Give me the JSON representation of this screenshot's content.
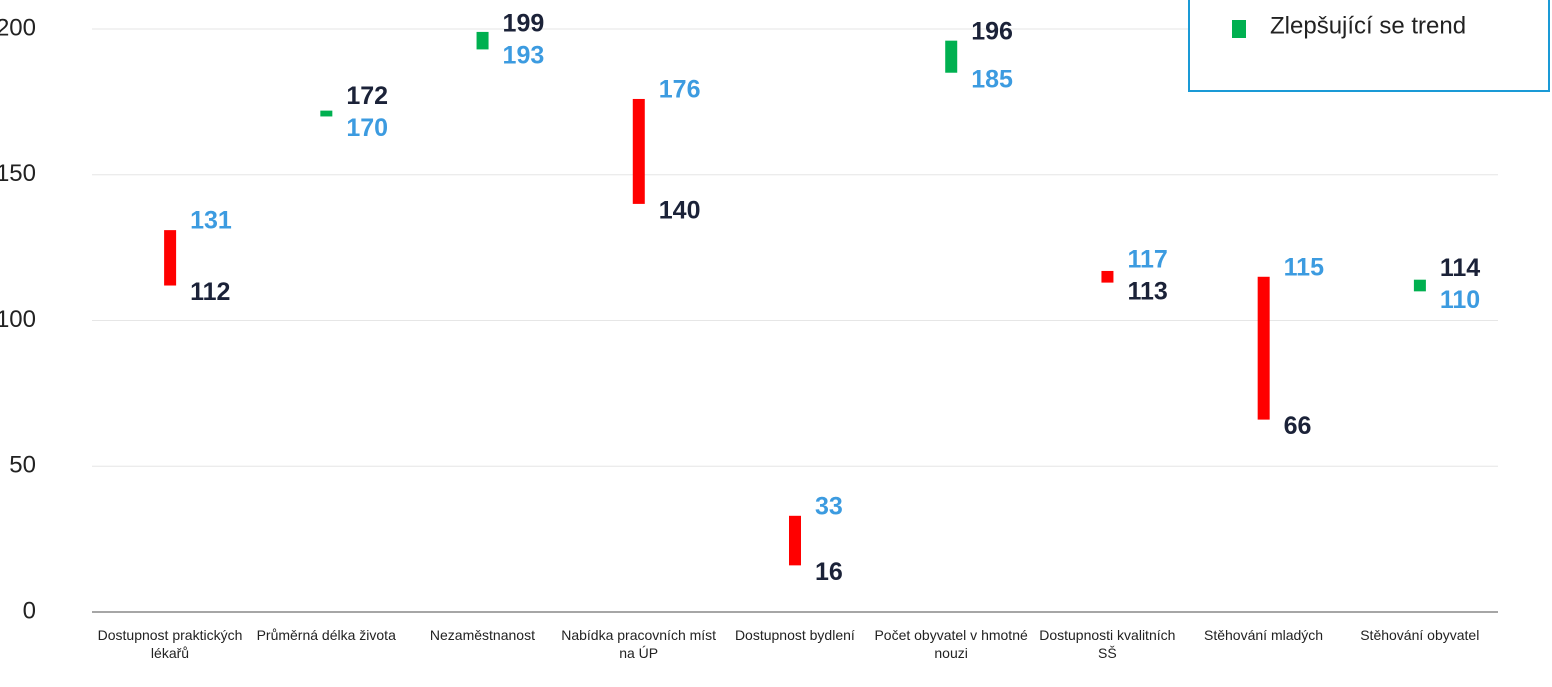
{
  "chart_data": {
    "type": "floating_bar",
    "categories": [
      "Dostupnost praktických lékařů",
      "Průměrná délka života",
      "Nezaměstnanost",
      "Nabídka pracovních míst na ÚP",
      "Dostupnost bydlení",
      "Počet obyvatel v hmotné nouzi",
      "Dostupnosti kvalitních SŠ",
      "Stěhování mladých",
      "Stěhování obyvatel"
    ],
    "series": [
      {
        "color": "#1b2238",
        "values": [
          112,
          172,
          199,
          140,
          16,
          196,
          113,
          66,
          114
        ]
      },
      {
        "color": "#3c9be0",
        "values": [
          131,
          170,
          193,
          176,
          33,
          185,
          117,
          115,
          110
        ]
      }
    ],
    "bar_colors": [
      "#ff0000",
      "#00b050",
      "#00b050",
      "#ff0000",
      "#ff0000",
      "#00b050",
      "#ff0000",
      "#ff0000",
      "#00b050"
    ],
    "legend": {
      "label": "Zlepšující se trend",
      "color": "#00b050",
      "position": "upper right"
    },
    "ylim": [
      0,
      200
    ],
    "yticks": [
      0,
      50,
      100,
      150,
      200
    ],
    "grid": true
  }
}
